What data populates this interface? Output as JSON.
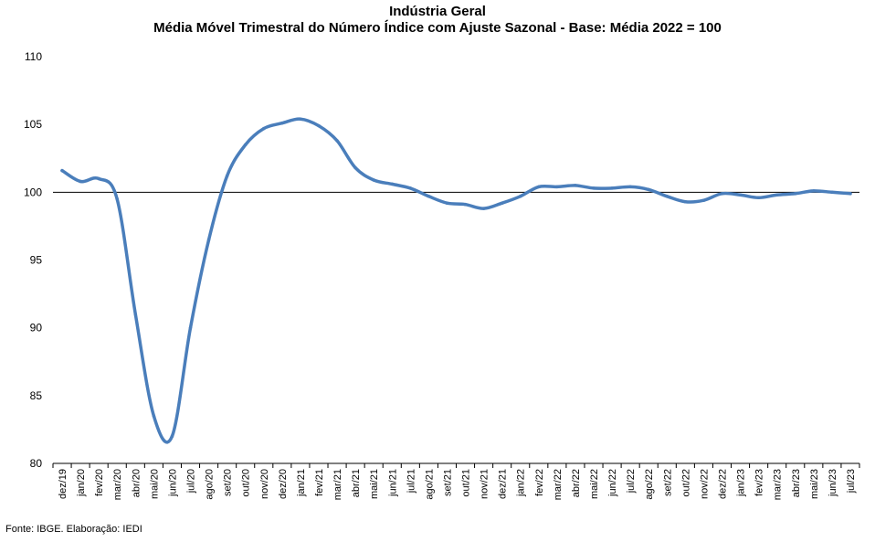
{
  "chart_data": {
    "type": "line",
    "title": "Indústria Geral",
    "subtitle": "Média Móvel Trimestral do Número Índice com Ajuste Sazonal - Base: Média 2022 = 100",
    "ylim": [
      80,
      110
    ],
    "yticks": [
      80,
      85,
      90,
      95,
      100,
      105,
      110
    ],
    "reference_line": 100,
    "grid": false,
    "legend": "none",
    "line_color": "#4a7ebb",
    "categories": [
      "dez/19",
      "jan/20",
      "fev/20",
      "mar/20",
      "abr/20",
      "mai/20",
      "jun/20",
      "jul/20",
      "ago/20",
      "set/20",
      "out/20",
      "nov/20",
      "dez/20",
      "jan/21",
      "fev/21",
      "mar/21",
      "abr/21",
      "mai/21",
      "jun/21",
      "jul/21",
      "ago/21",
      "set/21",
      "out/21",
      "nov/21",
      "dez/21",
      "jan/22",
      "fev/22",
      "mar/22",
      "abr/22",
      "mai/22",
      "jun/22",
      "jul/22",
      "ago/22",
      "set/22",
      "out/22",
      "nov/22",
      "dez/22",
      "jan/23",
      "fev/23",
      "mar/23",
      "abr/23",
      "mai/23",
      "jun/23",
      "jul/23"
    ],
    "series": [
      {
        "values": [
          101.6,
          100.8,
          101.0,
          99.5,
          91.0,
          83.5,
          82.0,
          90.0,
          96.5,
          101.2,
          103.5,
          104.7,
          105.1,
          105.4,
          104.9,
          103.8,
          101.8,
          100.9,
          100.6,
          100.3,
          99.7,
          99.2,
          99.1,
          98.8,
          99.2,
          99.7,
          100.4,
          100.4,
          100.5,
          100.3,
          100.3,
          100.4,
          100.2,
          99.7,
          99.3,
          99.4,
          99.9,
          99.8,
          99.6,
          99.8,
          99.9,
          100.1,
          100.0,
          99.9
        ]
      }
    ]
  },
  "source": "Fonte: IBGE.  Elaboração: IEDI"
}
